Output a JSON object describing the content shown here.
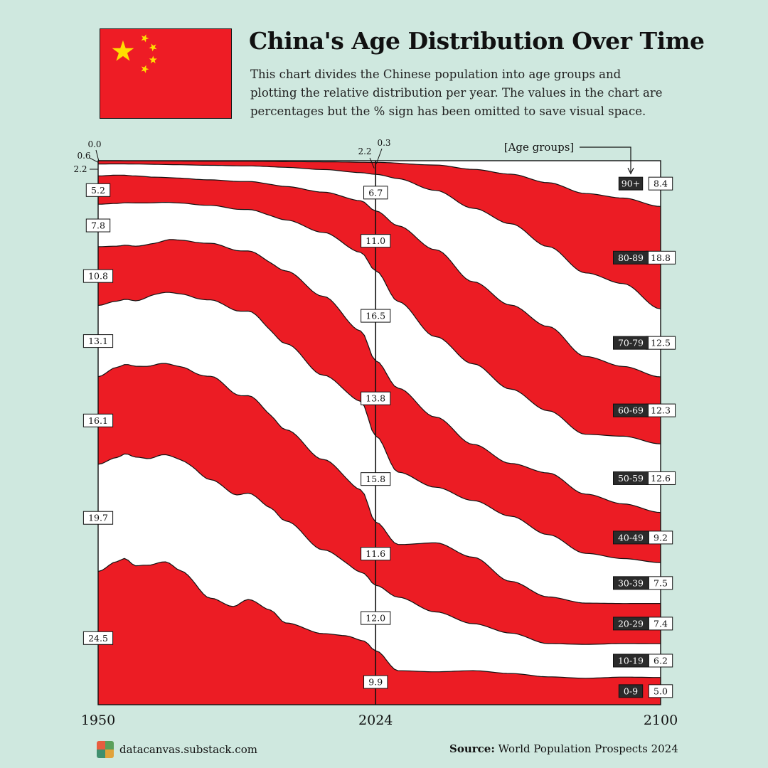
{
  "header": {
    "title": "China's Age Distribution Over Time",
    "subtitle": "This chart divides the Chinese population into age groups and plotting the relative distribution per year. The values in the chart are percentages but the % sign has been omitted to save visual space."
  },
  "footer": {
    "site": "datacanvas.substack.com",
    "source_label": "Source:",
    "source_text": "World Population Prospects 2024"
  },
  "colors": {
    "red": "#ec1c24",
    "white": "#ffffff",
    "background": "#cfe8df",
    "dark": "#2b2b2b",
    "flag_star": "#ffde00"
  },
  "chart_data": {
    "type": "area",
    "stacked": true,
    "normalized_percent": true,
    "x_ticks": [
      "1950",
      "2024",
      "2100"
    ],
    "xlim": [
      1950,
      2100
    ],
    "ylim": [
      0,
      100
    ],
    "legend_title": "[Age groups]",
    "groups": [
      "0-9",
      "10-19",
      "20-29",
      "30-39",
      "40-49",
      "50-59",
      "60-69",
      "70-79",
      "80-89",
      "90+"
    ],
    "series": [
      {
        "name": "0-9",
        "points": [
          [
            1950,
            24.5
          ],
          [
            1955,
            26.8
          ],
          [
            1957,
            27.6
          ],
          [
            1960,
            25.7
          ],
          [
            1963,
            25.9
          ],
          [
            1968,
            27.2
          ],
          [
            1972,
            25.4
          ],
          [
            1980,
            20.5
          ],
          [
            1986,
            18.6
          ],
          [
            1990,
            20.3
          ],
          [
            1996,
            18.1
          ],
          [
            2000,
            15.4
          ],
          [
            2010,
            12.9
          ],
          [
            2016,
            12.6
          ],
          [
            2021,
            11.6
          ],
          [
            2024,
            9.9
          ],
          [
            2030,
            6.2
          ],
          [
            2040,
            6.1
          ],
          [
            2050,
            6.3
          ],
          [
            2060,
            5.8
          ],
          [
            2070,
            5.2
          ],
          [
            2080,
            5.0
          ],
          [
            2090,
            5.1
          ],
          [
            2100,
            5.0
          ]
        ]
      },
      {
        "name": "10-19",
        "points": [
          [
            1950,
            19.7
          ],
          [
            1955,
            19.5
          ],
          [
            1960,
            20.1
          ],
          [
            1963,
            19.8
          ],
          [
            1968,
            20.4
          ],
          [
            1972,
            21.0
          ],
          [
            1980,
            22.8
          ],
          [
            1990,
            20.5
          ],
          [
            1996,
            19.6
          ],
          [
            2000,
            19.2
          ],
          [
            2010,
            15.2
          ],
          [
            2020,
            12.4
          ],
          [
            2024,
            12.0
          ],
          [
            2030,
            13.4
          ],
          [
            2040,
            11.1
          ],
          [
            2050,
            8.7
          ],
          [
            2060,
            7.5
          ],
          [
            2070,
            6.2
          ],
          [
            2080,
            6.4
          ],
          [
            2090,
            6.2
          ],
          [
            2100,
            6.2
          ]
        ]
      },
      {
        "name": "20-29",
        "points": [
          [
            1950,
            16.1
          ],
          [
            1955,
            16.9
          ],
          [
            1960,
            16.8
          ],
          [
            1965,
            17.3
          ],
          [
            1970,
            17.4
          ],
          [
            1975,
            18.1
          ],
          [
            1980,
            19.9
          ],
          [
            1990,
            18.8
          ],
          [
            2000,
            17.2
          ],
          [
            2010,
            16.4
          ],
          [
            2020,
            15.0
          ],
          [
            2024,
            11.6
          ],
          [
            2030,
            9.6
          ],
          [
            2040,
            12.8
          ],
          [
            2050,
            12.3
          ],
          [
            2060,
            9.6
          ],
          [
            2070,
            8.7
          ],
          [
            2080,
            7.8
          ],
          [
            2090,
            7.4
          ],
          [
            2100,
            7.4
          ]
        ]
      },
      {
        "name": "30-39",
        "points": [
          [
            1950,
            13.1
          ],
          [
            1955,
            12.4
          ],
          [
            1960,
            12.1
          ],
          [
            1965,
            13.2
          ],
          [
            1970,
            13.7
          ],
          [
            1980,
            14.7
          ],
          [
            1990,
            16.3
          ],
          [
            2000,
            16.2
          ],
          [
            2010,
            15.3
          ],
          [
            2020,
            16.1
          ],
          [
            2024,
            15.8
          ],
          [
            2030,
            13.2
          ],
          [
            2040,
            10.3
          ],
          [
            2050,
            10.5
          ],
          [
            2060,
            12.1
          ],
          [
            2070,
            11.6
          ],
          [
            2080,
            9.4
          ],
          [
            2090,
            8.3
          ],
          [
            2100,
            7.5
          ]
        ]
      },
      {
        "name": "40-49",
        "points": [
          [
            1950,
            10.8
          ],
          [
            1955,
            10.3
          ],
          [
            1960,
            10.1
          ],
          [
            1965,
            9.6
          ],
          [
            1970,
            10.1
          ],
          [
            1980,
            10.9
          ],
          [
            1990,
            11.6
          ],
          [
            2000,
            13.7
          ],
          [
            2010,
            14.3
          ],
          [
            2020,
            12.8
          ],
          [
            2024,
            13.8
          ],
          [
            2030,
            15.3
          ],
          [
            2040,
            13.0
          ],
          [
            2050,
            10.4
          ],
          [
            2060,
            9.8
          ],
          [
            2070,
            11.5
          ],
          [
            2080,
            11.2
          ],
          [
            2090,
            10.1
          ],
          [
            2100,
            9.2
          ]
        ]
      },
      {
        "name": "50-59",
        "points": [
          [
            1950,
            7.8
          ],
          [
            1955,
            8.0
          ],
          [
            1960,
            8.0
          ],
          [
            1965,
            7.6
          ],
          [
            1970,
            7.0
          ],
          [
            1980,
            7.3
          ],
          [
            1990,
            8.0
          ],
          [
            2000,
            9.6
          ],
          [
            2010,
            11.6
          ],
          [
            2020,
            14.3
          ],
          [
            2024,
            16.5
          ],
          [
            2030,
            15.8
          ],
          [
            2040,
            14.9
          ],
          [
            2050,
            14.9
          ],
          [
            2060,
            13.8
          ],
          [
            2070,
            11.6
          ],
          [
            2080,
            11.3
          ],
          [
            2090,
            12.5
          ],
          [
            2100,
            12.6
          ]
        ]
      },
      {
        "name": "60-69",
        "points": [
          [
            1950,
            5.2
          ],
          [
            1955,
            5.3
          ],
          [
            1960,
            5.0
          ],
          [
            1965,
            4.8
          ],
          [
            1970,
            4.7
          ],
          [
            1980,
            4.9
          ],
          [
            1990,
            5.4
          ],
          [
            2000,
            6.3
          ],
          [
            2010,
            7.3
          ],
          [
            2020,
            9.4
          ],
          [
            2024,
            11.0
          ],
          [
            2030,
            13.8
          ],
          [
            2040,
            16.1
          ],
          [
            2050,
            15.2
          ],
          [
            2060,
            15.6
          ],
          [
            2070,
            15.7
          ],
          [
            2080,
            14.7
          ],
          [
            2090,
            12.9
          ],
          [
            2100,
            12.3
          ]
        ]
      },
      {
        "name": "70-79",
        "points": [
          [
            1950,
            2.2
          ],
          [
            1955,
            2.1
          ],
          [
            1960,
            2.2
          ],
          [
            1965,
            2.4
          ],
          [
            1970,
            2.5
          ],
          [
            1980,
            2.8
          ],
          [
            1990,
            3.0
          ],
          [
            2000,
            3.6
          ],
          [
            2010,
            4.1
          ],
          [
            2020,
            5.1
          ],
          [
            2024,
            6.7
          ],
          [
            2030,
            8.6
          ],
          [
            2040,
            11.0
          ],
          [
            2050,
            13.6
          ],
          [
            2060,
            15.1
          ],
          [
            2070,
            14.9
          ],
          [
            2080,
            15.8
          ],
          [
            2090,
            15.3
          ],
          [
            2100,
            12.5
          ]
        ]
      },
      {
        "name": "80-89",
        "points": [
          [
            1950,
            0.6
          ],
          [
            1960,
            0.6
          ],
          [
            1970,
            0.7
          ],
          [
            1980,
            0.8
          ],
          [
            1990,
            0.9
          ],
          [
            2000,
            1.1
          ],
          [
            2010,
            1.4
          ],
          [
            2020,
            1.9
          ],
          [
            2024,
            2.2
          ],
          [
            2030,
            2.8
          ],
          [
            2040,
            4.7
          ],
          [
            2050,
            7.2
          ],
          [
            2060,
            9.2
          ],
          [
            2070,
            11.9
          ],
          [
            2080,
            15.0
          ],
          [
            2090,
            15.8
          ],
          [
            2100,
            18.8
          ]
        ]
      },
      {
        "name": "90+",
        "points": [
          [
            1950,
            0.0
          ],
          [
            1990,
            0.1
          ],
          [
            2010,
            0.2
          ],
          [
            2024,
            0.3
          ],
          [
            2040,
            0.8
          ],
          [
            2050,
            1.6
          ],
          [
            2060,
            2.5
          ],
          [
            2070,
            4.1
          ],
          [
            2080,
            6.2
          ],
          [
            2090,
            6.9
          ],
          [
            2100,
            8.4
          ]
        ]
      }
    ],
    "labels_1950": [
      "24.5",
      "19.7",
      "16.1",
      "13.1",
      "10.8",
      "7.8",
      "5.2",
      "2.2",
      "0.6",
      "0.0"
    ],
    "labels_2024": [
      "9.9",
      "12.0",
      "11.6",
      "15.8",
      "13.8",
      "16.5",
      "11.0",
      "6.7",
      "2.2",
      "0.3"
    ],
    "labels_2100": [
      "5.0",
      "6.2",
      "7.4",
      "7.5",
      "9.2",
      "12.6",
      "12.3",
      "12.5",
      "18.8",
      "8.4"
    ]
  }
}
